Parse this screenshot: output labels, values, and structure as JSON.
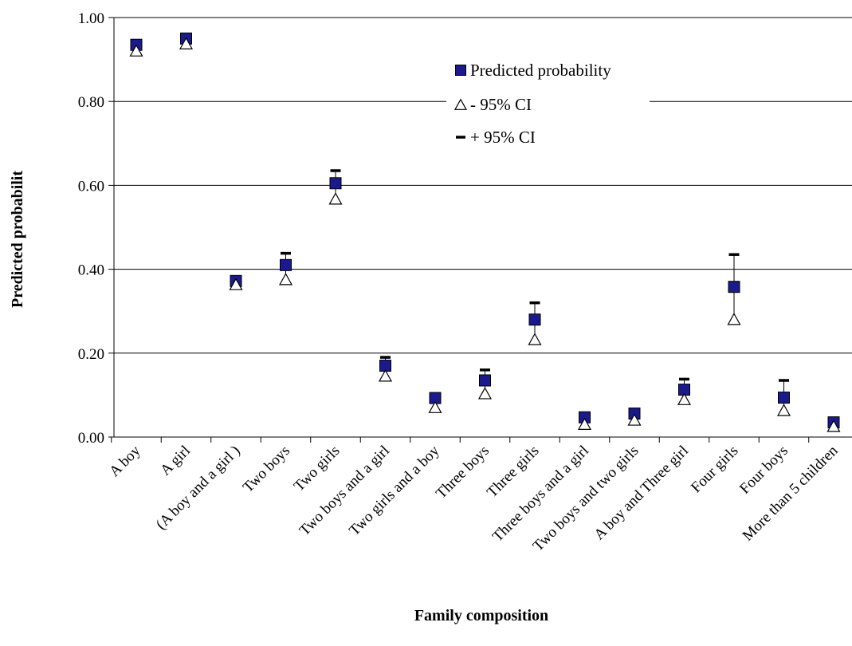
{
  "chart_data": {
    "type": "scatter",
    "xlabel": "Family composition",
    "ylabel": "Predicted probabilit",
    "ylim": [
      0,
      1
    ],
    "yticks": [
      "0.00",
      "0.20",
      "0.40",
      "0.60",
      "0.80",
      "1.00"
    ],
    "grid": true,
    "legend_position": "top-right",
    "categories": [
      "A boy",
      "A girl",
      "(A boy and a girl )",
      "Two boys",
      "Two girls",
      "Two boys and a girl",
      "Two girls and a boy",
      "Three boys",
      "Three girls",
      "Three boys and a girl",
      "Two boys and two girls",
      "A boy and Three girl",
      "Four girls",
      "Four boys",
      "More than 5 children"
    ],
    "series": [
      {
        "name": "Predicted probability",
        "marker": "square",
        "color": "#1a1a8c",
        "values": [
          0.935,
          0.95,
          0.372,
          0.41,
          0.605,
          0.17,
          0.093,
          0.135,
          0.28,
          0.047,
          0.056,
          0.113,
          0.358,
          0.094,
          0.035
        ]
      },
      {
        "name": "- 95% CI",
        "marker": "triangle",
        "color": "#ffffff",
        "values": [
          0.925,
          0.942,
          0.368,
          0.38,
          0.572,
          0.15,
          0.075,
          0.108,
          0.237,
          0.035,
          0.045,
          0.094,
          0.285,
          0.068,
          0.03
        ]
      },
      {
        "name": "+ 95% CI",
        "marker": "dash",
        "color": "#000000",
        "values": [
          0.944,
          0.957,
          0.378,
          0.438,
          0.635,
          0.19,
          0.1,
          0.16,
          0.32,
          0.05,
          0.06,
          0.138,
          0.435,
          0.135,
          0.037
        ]
      }
    ]
  }
}
